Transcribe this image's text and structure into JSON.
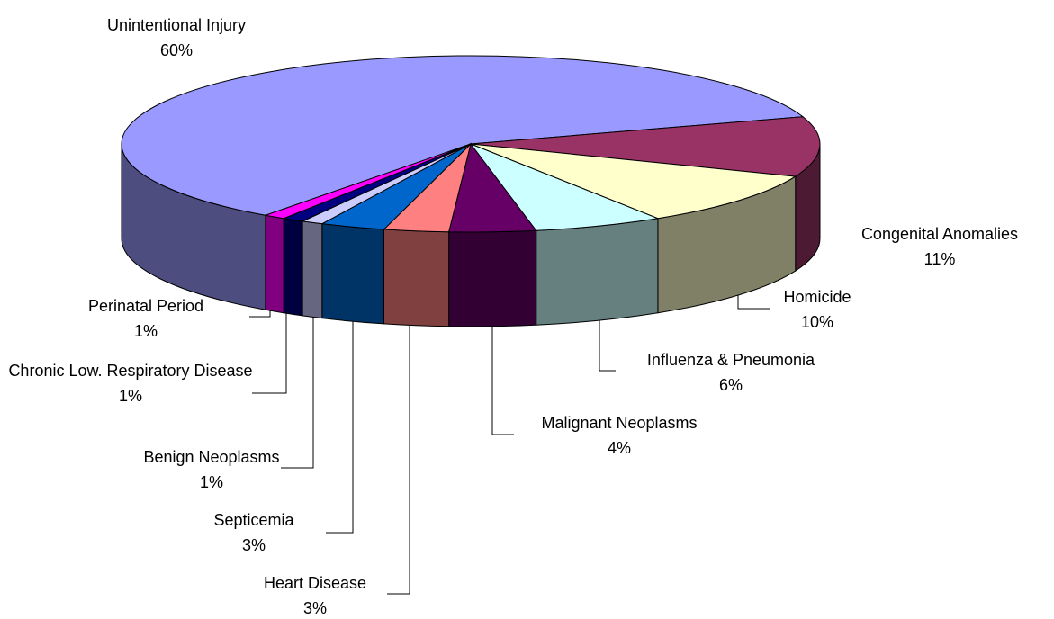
{
  "chart_data": {
    "type": "pie",
    "categories": [
      "Unintentional Injury",
      "Congenital Anomalies",
      "Homicide",
      "Influenza & Pneumonia",
      "Malignant Neoplasms",
      "Heart Disease",
      "Septicemia",
      "Benign Neoplasms",
      "Chronic Low. Respiratory Disease",
      "Perinatal Period"
    ],
    "values": [
      60,
      11,
      10,
      6,
      4,
      3,
      3,
      1,
      1,
      1
    ],
    "value_labels": [
      "60%",
      "11%",
      "10%",
      "6%",
      "4%",
      "3%",
      "3%",
      "1%",
      "1%",
      "1%"
    ],
    "colors": [
      "#9999FF",
      "#993366",
      "#FFFFCC",
      "#CCFFFF",
      "#660066",
      "#FF8080",
      "#0066CC",
      "#CCCCFF",
      "#000080",
      "#FF00FF"
    ]
  }
}
